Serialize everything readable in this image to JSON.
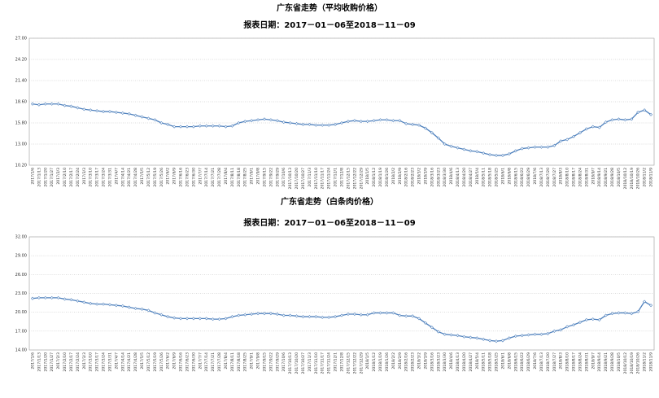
{
  "chart_data": [
    {
      "type": "line",
      "title": "广东省走势（平均收购价格）",
      "subtitle": "报表日期：2017－01－06至2018－11－09",
      "categories": [
        "2017/1/6",
        "2017/1/13",
        "2017/1/20",
        "2017/1/27",
        "2017/2/3",
        "2017/2/10",
        "2017/2/17",
        "2017/2/24",
        "2017/3/3",
        "2017/3/10",
        "2017/3/17",
        "2017/3/24",
        "2017/3/31",
        "2017/4/7",
        "2017/4/14",
        "2017/4/21",
        "2017/4/28",
        "2017/5/5",
        "2017/5/12",
        "2017/5/19",
        "2017/5/26",
        "2017/6/2",
        "2017/6/9",
        "2017/6/16",
        "2017/6/23",
        "2017/6/30",
        "2017/7/7",
        "2017/7/14",
        "2017/7/21",
        "2017/7/28",
        "2017/8/4",
        "2017/8/11",
        "2017/8/18",
        "2017/8/25",
        "2017/9/1",
        "2017/9/8",
        "2017/9/15",
        "2017/9/22",
        "2017/9/29",
        "2017/10/6",
        "2017/10/13",
        "2017/10/20",
        "2017/10/27",
        "2017/11/3",
        "2017/11/10",
        "2017/11/17",
        "2017/11/24",
        "2017/12/1",
        "2017/12/8",
        "2017/12/15",
        "2017/12/22",
        "2017/12/29",
        "2018/1/5",
        "2018/1/12",
        "2018/1/19",
        "2018/1/26",
        "2018/2/2",
        "2018/2/9",
        "2018/2/16",
        "2018/2/23",
        "2018/3/2",
        "2018/3/9",
        "2018/3/16",
        "2018/3/23",
        "2018/3/30",
        "2018/4/6",
        "2018/4/13",
        "2018/4/20",
        "2018/4/27",
        "2018/5/4",
        "2018/5/11",
        "2018/5/18",
        "2018/5/25",
        "2018/6/1",
        "2018/6/8",
        "2018/6/15",
        "2018/6/22",
        "2018/6/29",
        "2018/7/6",
        "2018/7/13",
        "2018/7/20",
        "2018/7/27",
        "2018/8/3",
        "2018/8/10",
        "2018/8/17",
        "2018/8/24",
        "2018/8/31",
        "2018/9/7",
        "2018/9/14",
        "2018/9/21",
        "2018/9/28",
        "2018/10/5",
        "2018/10/12",
        "2018/10/19",
        "2018/10/26",
        "2018/11/2",
        "2018/11/9"
      ],
      "series": [
        {
          "color": "#4f81bd",
          "values": [
            18.3,
            18.2,
            18.3,
            18.3,
            18.3,
            18.1,
            18.0,
            17.8,
            17.6,
            17.5,
            17.4,
            17.3,
            17.3,
            17.2,
            17.1,
            17.0,
            16.8,
            16.6,
            16.4,
            16.2,
            15.8,
            15.6,
            15.3,
            15.3,
            15.3,
            15.3,
            15.4,
            15.4,
            15.4,
            15.4,
            15.3,
            15.4,
            15.8,
            16.0,
            16.1,
            16.2,
            16.3,
            16.2,
            16.1,
            15.9,
            15.8,
            15.7,
            15.6,
            15.6,
            15.5,
            15.5,
            15.5,
            15.6,
            15.8,
            16.0,
            16.1,
            16.0,
            16.0,
            16.1,
            16.2,
            16.2,
            16.1,
            16.1,
            15.7,
            15.6,
            15.5,
            15.1,
            14.5,
            13.8,
            13.0,
            12.7,
            12.5,
            12.3,
            12.1,
            12.0,
            11.8,
            11.6,
            11.5,
            11.5,
            11.7,
            12.1,
            12.4,
            12.5,
            12.6,
            12.6,
            12.6,
            12.8,
            13.4,
            13.6,
            14.0,
            14.5,
            15.0,
            15.3,
            15.2,
            15.9,
            16.2,
            16.3,
            16.2,
            16.3,
            17.2,
            17.5,
            16.9
          ]
        }
      ],
      "ylim": [
        10.2,
        27.0
      ],
      "yticks": [
        {
          "value": 10.2,
          "label": "10.20"
        },
        {
          "value": 13.0,
          "label": "13.00"
        },
        {
          "value": 15.8,
          "label": "15.80"
        },
        {
          "value": 18.6,
          "label": "18.60"
        },
        {
          "value": 21.4,
          "label": "21.40"
        },
        {
          "value": 24.2,
          "label": "24.20"
        },
        {
          "value": 27.0,
          "label": "27.00"
        }
      ],
      "grid": true
    },
    {
      "type": "line",
      "title": "广东省走势（白条肉价格）",
      "subtitle": "报表日期：2017－01－06至2018－11－09",
      "categories": [
        "2017/1/6",
        "2017/1/13",
        "2017/1/20",
        "2017/1/27",
        "2017/2/3",
        "2017/2/10",
        "2017/2/17",
        "2017/2/24",
        "2017/3/3",
        "2017/3/10",
        "2017/3/17",
        "2017/3/24",
        "2017/3/31",
        "2017/4/7",
        "2017/4/14",
        "2017/4/21",
        "2017/4/28",
        "2017/5/5",
        "2017/5/12",
        "2017/5/19",
        "2017/5/26",
        "2017/6/2",
        "2017/6/9",
        "2017/6/16",
        "2017/6/23",
        "2017/6/30",
        "2017/7/7",
        "2017/7/14",
        "2017/7/21",
        "2017/7/28",
        "2017/8/4",
        "2017/8/11",
        "2017/8/18",
        "2017/8/25",
        "2017/9/1",
        "2017/9/8",
        "2017/9/15",
        "2017/9/22",
        "2017/9/29",
        "2017/10/6",
        "2017/10/13",
        "2017/10/20",
        "2017/10/27",
        "2017/11/3",
        "2017/11/10",
        "2017/11/17",
        "2017/11/24",
        "2017/12/1",
        "2017/12/8",
        "2017/12/15",
        "2017/12/22",
        "2017/12/29",
        "2018/1/5",
        "2018/1/12",
        "2018/1/19",
        "2018/1/26",
        "2018/2/2",
        "2018/2/9",
        "2018/2/16",
        "2018/2/23",
        "2018/3/2",
        "2018/3/9",
        "2018/3/16",
        "2018/3/23",
        "2018/3/30",
        "2018/4/6",
        "2018/4/13",
        "2018/4/20",
        "2018/4/27",
        "2018/5/4",
        "2018/5/11",
        "2018/5/18",
        "2018/5/25",
        "2018/6/1",
        "2018/6/8",
        "2018/6/15",
        "2018/6/22",
        "2018/6/29",
        "2018/7/6",
        "2018/7/13",
        "2018/7/20",
        "2018/7/27",
        "2018/8/3",
        "2018/8/10",
        "2018/8/17",
        "2018/8/24",
        "2018/8/31",
        "2018/9/7",
        "2018/9/14",
        "2018/9/21",
        "2018/9/28",
        "2018/10/5",
        "2018/10/12",
        "2018/10/19",
        "2018/10/26",
        "2018/11/2",
        "2018/11/9"
      ],
      "series": [
        {
          "color": "#4f81bd",
          "values": [
            22.2,
            22.3,
            22.3,
            22.3,
            22.3,
            22.1,
            22.0,
            21.8,
            21.6,
            21.4,
            21.3,
            21.3,
            21.2,
            21.1,
            21.0,
            20.8,
            20.6,
            20.5,
            20.3,
            19.9,
            19.6,
            19.3,
            19.1,
            19.0,
            19.0,
            19.0,
            19.0,
            19.0,
            18.9,
            18.9,
            19.0,
            19.3,
            19.5,
            19.6,
            19.7,
            19.8,
            19.8,
            19.8,
            19.7,
            19.5,
            19.5,
            19.4,
            19.3,
            19.3,
            19.3,
            19.2,
            19.2,
            19.3,
            19.5,
            19.7,
            19.7,
            19.6,
            19.6,
            19.9,
            19.9,
            19.9,
            19.9,
            19.5,
            19.4,
            19.4,
            19.0,
            18.3,
            17.6,
            16.9,
            16.5,
            16.4,
            16.3,
            16.1,
            16.0,
            15.9,
            15.7,
            15.5,
            15.4,
            15.5,
            15.9,
            16.2,
            16.3,
            16.4,
            16.5,
            16.5,
            16.6,
            17.0,
            17.2,
            17.7,
            18.0,
            18.4,
            18.8,
            18.9,
            18.8,
            19.5,
            19.8,
            19.9,
            19.9,
            19.8,
            20.1,
            21.7,
            21.1
          ]
        }
      ],
      "ylim": [
        14.0,
        32.0
      ],
      "yticks": [
        {
          "value": 14.0,
          "label": "14.00"
        },
        {
          "value": 17.0,
          "label": "17.00"
        },
        {
          "value": 20.0,
          "label": "20.00"
        },
        {
          "value": 23.0,
          "label": "23.00"
        },
        {
          "value": 26.0,
          "label": "26.00"
        },
        {
          "value": 29.0,
          "label": "29.00"
        },
        {
          "value": 32.0,
          "label": "32.00"
        }
      ],
      "grid": true
    }
  ]
}
